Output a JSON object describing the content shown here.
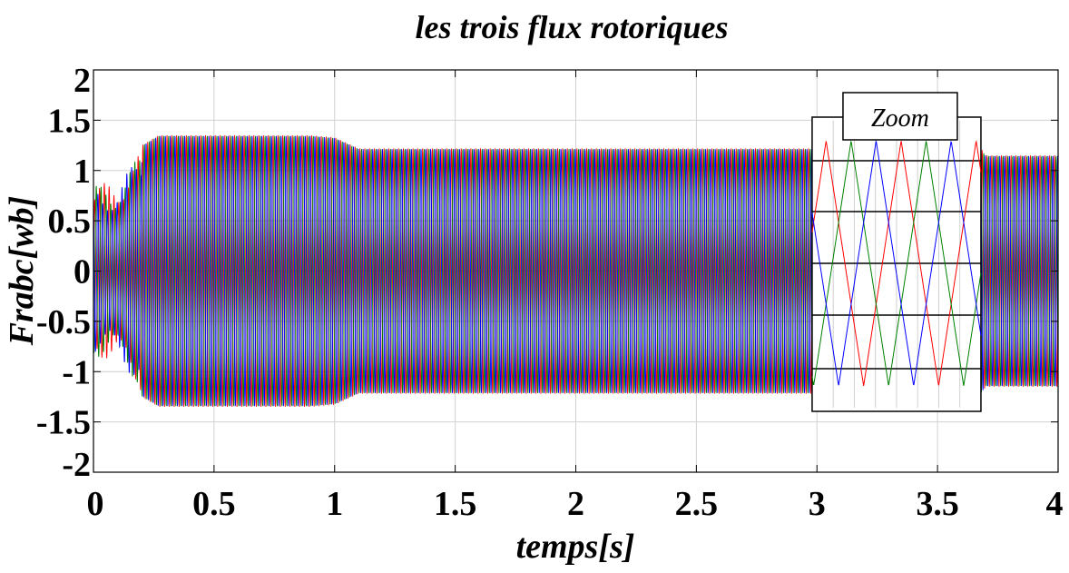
{
  "chart_data": {
    "type": "line",
    "title": "les trois flux rotoriques",
    "xlabel": "temps[s]",
    "ylabel": "Frabc[wb]",
    "xlim": [
      0,
      4
    ],
    "ylim": [
      -2,
      2
    ],
    "xticks": [
      "0",
      "0.5",
      "1",
      "1.5",
      "2",
      "2.5",
      "3",
      "3.5",
      "4"
    ],
    "yticks": [
      "2",
      "1.5",
      "1",
      "0.5",
      "0",
      "-0.5",
      "-1",
      "-1.5",
      "-2"
    ],
    "grid": true,
    "series": [
      {
        "color": "#ff0000",
        "phase_deg": 0
      },
      {
        "color": "#008000",
        "phase_deg": -120
      },
      {
        "color": "#0000ff",
        "phase_deg": 120
      }
    ],
    "envelope": [
      {
        "t": 0.0,
        "amp": 0.8
      },
      {
        "t": 0.1,
        "amp": 0.9
      },
      {
        "t": 0.2,
        "amp": 1.25
      },
      {
        "t": 0.27,
        "amp": 1.35
      },
      {
        "t": 0.9,
        "amp": 1.35
      },
      {
        "t": 1.0,
        "amp": 1.33
      },
      {
        "t": 1.1,
        "amp": 1.22
      },
      {
        "t": 1.5,
        "amp": 1.22
      },
      {
        "t": 2.98,
        "amp": 1.22
      },
      {
        "t": 3.68,
        "amp": 1.22
      },
      {
        "t": 3.7,
        "amp": 1.15
      },
      {
        "t": 4.0,
        "amp": 1.15
      }
    ],
    "electrical_frequency_hz": 50,
    "zoom_inset": {
      "label": "Zoom",
      "x_range": [
        2.98,
        3.68
      ]
    }
  }
}
